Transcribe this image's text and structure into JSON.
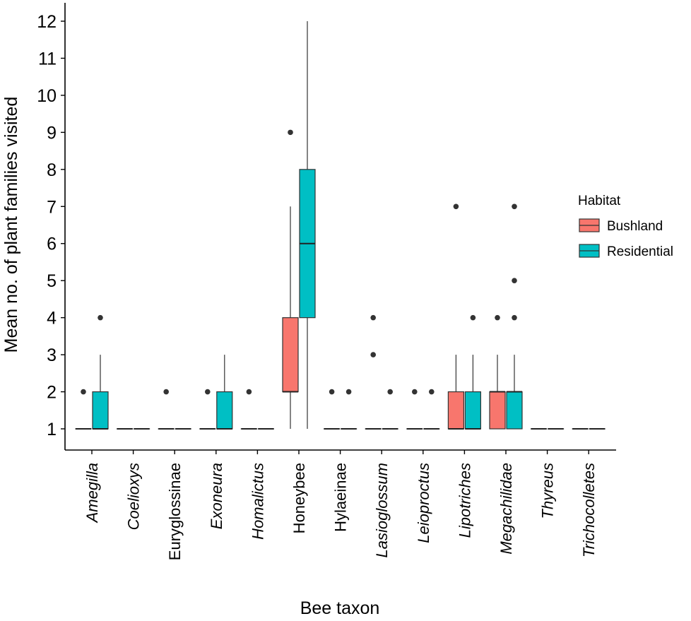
{
  "chart_data": {
    "type": "boxplot",
    "ylabel": "Mean no. of plant families visited",
    "xlabel": "Bee taxon",
    "ylim": [
      0.4,
      12.5
    ],
    "yticks": [
      "1",
      "2",
      "3",
      "4",
      "5",
      "6",
      "7",
      "8",
      "9",
      "10",
      "11",
      "12"
    ],
    "legend": {
      "title": "Habitat",
      "position": "right",
      "entries": [
        {
          "name": "Bushland",
          "color": "#F8766D"
        },
        {
          "name": "Residential",
          "color": "#00BFC4"
        }
      ]
    },
    "categories": [
      {
        "name": "Amegilla",
        "italic": true
      },
      {
        "name": "Coelioxys",
        "italic": true
      },
      {
        "name": "Euryglossinae",
        "italic": false
      },
      {
        "name": "Exoneura",
        "italic": true
      },
      {
        "name": "Homalictus",
        "italic": true
      },
      {
        "name": "Honeybee",
        "italic": false
      },
      {
        "name": "Hylaeinae",
        "italic": false
      },
      {
        "name": "Lasioglossum",
        "italic": true
      },
      {
        "name": "Leioproctus",
        "italic": true
      },
      {
        "name": "Lipotriches",
        "italic": true
      },
      {
        "name": "Megachilidae",
        "italic": true
      },
      {
        "name": "Thyreus",
        "italic": true
      },
      {
        "name": "Trichocolletes",
        "italic": true
      }
    ],
    "series": [
      {
        "name": "Bushland",
        "color": "#F8766D",
        "boxes": [
          {
            "q1": 1,
            "median": 1,
            "q3": 1,
            "low": 1,
            "high": 1,
            "outliers": [
              2
            ]
          },
          {
            "q1": 1,
            "median": 1,
            "q3": 1,
            "low": 1,
            "high": 1,
            "outliers": []
          },
          {
            "q1": 1,
            "median": 1,
            "q3": 1,
            "low": 1,
            "high": 1,
            "outliers": [
              2
            ]
          },
          {
            "q1": 1,
            "median": 1,
            "q3": 1,
            "low": 1,
            "high": 1,
            "outliers": [
              2
            ]
          },
          {
            "q1": 1,
            "median": 1,
            "q3": 1,
            "low": 1,
            "high": 1,
            "outliers": [
              2
            ]
          },
          {
            "q1": 2,
            "median": 2,
            "q3": 4,
            "low": 1,
            "high": 7,
            "outliers": [
              9
            ]
          },
          {
            "q1": 1,
            "median": 1,
            "q3": 1,
            "low": 1,
            "high": 1,
            "outliers": [
              2
            ]
          },
          {
            "q1": 1,
            "median": 1,
            "q3": 1,
            "low": 1,
            "high": 1,
            "outliers": [
              3,
              4
            ]
          },
          {
            "q1": 1,
            "median": 1,
            "q3": 1,
            "low": 1,
            "high": 1,
            "outliers": [
              2
            ]
          },
          {
            "q1": 1,
            "median": 1,
            "q3": 2,
            "low": 1,
            "high": 3,
            "outliers": [
              7
            ]
          },
          {
            "q1": 1,
            "median": 2,
            "q3": 2,
            "low": 1,
            "high": 3,
            "outliers": [
              4
            ]
          },
          {
            "q1": 1,
            "median": 1,
            "q3": 1,
            "low": 1,
            "high": 1,
            "outliers": []
          },
          {
            "q1": 1,
            "median": 1,
            "q3": 1,
            "low": 1,
            "high": 1,
            "outliers": []
          }
        ]
      },
      {
        "name": "Residential",
        "color": "#00BFC4",
        "boxes": [
          {
            "q1": 1,
            "median": 1,
            "q3": 2,
            "low": 1,
            "high": 3,
            "outliers": [
              4
            ]
          },
          {
            "q1": 1,
            "median": 1,
            "q3": 1,
            "low": 1,
            "high": 1,
            "outliers": []
          },
          {
            "q1": 1,
            "median": 1,
            "q3": 1,
            "low": 1,
            "high": 1,
            "outliers": []
          },
          {
            "q1": 1,
            "median": 1,
            "q3": 2,
            "low": 1,
            "high": 3,
            "outliers": []
          },
          {
            "q1": 1,
            "median": 1,
            "q3": 1,
            "low": 1,
            "high": 1,
            "outliers": []
          },
          {
            "q1": 4,
            "median": 6,
            "q3": 8,
            "low": 1,
            "high": 12,
            "outliers": []
          },
          {
            "q1": 1,
            "median": 1,
            "q3": 1,
            "low": 1,
            "high": 1,
            "outliers": [
              2
            ]
          },
          {
            "q1": 1,
            "median": 1,
            "q3": 1,
            "low": 1,
            "high": 1,
            "outliers": [
              2
            ]
          },
          {
            "q1": 1,
            "median": 1,
            "q3": 1,
            "low": 1,
            "high": 1,
            "outliers": [
              2
            ]
          },
          {
            "q1": 1,
            "median": 1,
            "q3": 2,
            "low": 1,
            "high": 3,
            "outliers": [
              4
            ]
          },
          {
            "q1": 1,
            "median": 2,
            "q3": 2,
            "low": 1,
            "high": 3,
            "outliers": [
              4,
              5,
              7
            ]
          },
          {
            "q1": 1,
            "median": 1,
            "q3": 1,
            "low": 1,
            "high": 1,
            "outliers": []
          },
          {
            "q1": 1,
            "median": 1,
            "q3": 1,
            "low": 1,
            "high": 1,
            "outliers": []
          }
        ]
      }
    ]
  }
}
